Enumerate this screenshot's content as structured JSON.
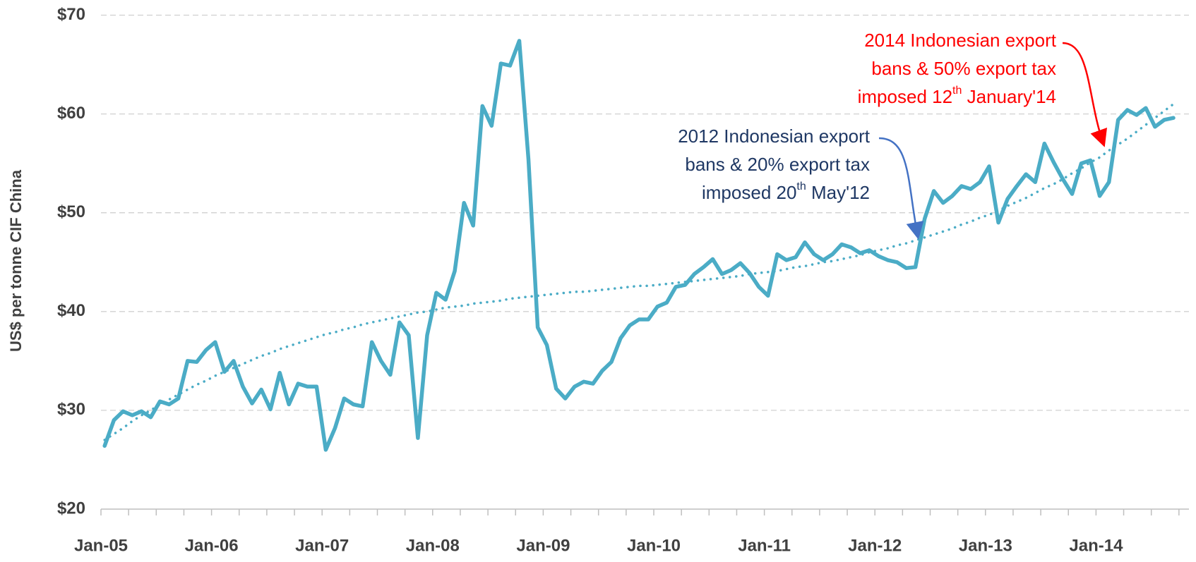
{
  "chart_data": {
    "type": "line",
    "y_label": "US$ per tonne CIF China",
    "categories": [
      "Jan-05",
      null,
      null,
      null,
      null,
      null,
      null,
      null,
      null,
      null,
      null,
      null,
      "Jan-06",
      null,
      null,
      null,
      null,
      null,
      null,
      null,
      null,
      null,
      null,
      null,
      "Jan-07",
      null,
      null,
      null,
      null,
      null,
      null,
      null,
      null,
      null,
      null,
      null,
      "Jan-08",
      null,
      null,
      null,
      null,
      null,
      null,
      null,
      null,
      null,
      null,
      null,
      "Jan-09",
      null,
      null,
      null,
      null,
      null,
      null,
      null,
      null,
      null,
      null,
      null,
      "Jan-10",
      null,
      null,
      null,
      null,
      null,
      null,
      null,
      null,
      null,
      null,
      null,
      "Jan-11",
      null,
      null,
      null,
      null,
      null,
      null,
      null,
      null,
      null,
      null,
      null,
      "Jan-12",
      null,
      null,
      null,
      null,
      null,
      null,
      null,
      null,
      null,
      null,
      null,
      "Jan-13",
      null,
      null,
      null,
      null,
      null,
      null,
      null,
      null,
      null,
      null,
      null,
      "Jan-14",
      null,
      null,
      null,
      null,
      null,
      null,
      null,
      null
    ],
    "series": [
      {
        "color": "#4bacc6",
        "line_style": "solid",
        "values": [
          26.4,
          29.0,
          29.9,
          29.5,
          29.9,
          29.3,
          30.9,
          30.6,
          31.2,
          35.0,
          34.9,
          36.1,
          36.9,
          33.9,
          35.0,
          32.4,
          30.7,
          32.1,
          30.1,
          33.8,
          30.6,
          32.7,
          32.4,
          32.4,
          26.0,
          28.2,
          31.2,
          30.6,
          30.4,
          36.9,
          35.0,
          33.6,
          38.9,
          37.6,
          27.2,
          37.6,
          41.9,
          41.2,
          44.1,
          51.0,
          48.7,
          60.8,
          58.8,
          65.1,
          64.9,
          67.4,
          55.4,
          38.4,
          36.6,
          32.2,
          31.2,
          32.4,
          32.9,
          32.7,
          34.0,
          34.9,
          37.3,
          38.6,
          39.2,
          39.2,
          40.5,
          40.9,
          42.5,
          42.7,
          43.8,
          44.5,
          45.3,
          43.8,
          44.2,
          44.9,
          43.9,
          42.5,
          41.6,
          45.8,
          45.2,
          45.5,
          47.0,
          45.8,
          45.2,
          45.8,
          46.8,
          46.5,
          45.9,
          46.2,
          45.6,
          45.2,
          45.0,
          44.4,
          44.5,
          49.4,
          52.2,
          51.0,
          51.7,
          52.7,
          52.4,
          53.1,
          54.7,
          49.0,
          51.4,
          52.7,
          53.9,
          53.1,
          57.0,
          55.1,
          53.4,
          51.9,
          55.0,
          55.3,
          51.7,
          53.1,
          59.4,
          60.4,
          59.9,
          60.6,
          58.7,
          59.4,
          59.6
        ]
      },
      {
        "color": "#4bacc6",
        "line_style": "dotted",
        "values": [
          27.0,
          27.6,
          28.2,
          28.9,
          29.5,
          30.0,
          30.6,
          31.1,
          31.6,
          32.1,
          32.6,
          33.0,
          33.5,
          33.9,
          34.3,
          34.7,
          35.1,
          35.5,
          35.8,
          36.2,
          36.5,
          36.8,
          37.1,
          37.4,
          37.7,
          37.9,
          38.2,
          38.4,
          38.7,
          38.9,
          39.1,
          39.3,
          39.5,
          39.7,
          39.9,
          40.0,
          40.2,
          40.4,
          40.5,
          40.6,
          40.8,
          40.9,
          41.0,
          41.1,
          41.3,
          41.4,
          41.5,
          41.6,
          41.7,
          41.8,
          41.9,
          42.0,
          42.0,
          42.1,
          42.2,
          42.3,
          42.4,
          42.5,
          42.6,
          42.6,
          42.7,
          42.8,
          42.9,
          43.0,
          43.1,
          43.2,
          43.3,
          43.4,
          43.5,
          43.6,
          43.8,
          43.9,
          44.0,
          44.1,
          44.3,
          44.5,
          44.6,
          44.8,
          45.0,
          45.1,
          45.3,
          45.5,
          45.7,
          46.0,
          46.2,
          46.4,
          46.7,
          46.9,
          47.2,
          47.5,
          47.8,
          48.1,
          48.4,
          48.8,
          49.1,
          49.5,
          49.8,
          50.2,
          50.7,
          51.1,
          51.5,
          52.0,
          52.5,
          52.9,
          53.4,
          54.0,
          54.5,
          55.1,
          55.6,
          56.3,
          56.9,
          57.5,
          58.2,
          58.9,
          59.6,
          60.3,
          61.0
        ]
      }
    ],
    "ylim": [
      20,
      70
    ],
    "yticks": [
      {
        "value": 20,
        "label": "$20"
      },
      {
        "value": 30,
        "label": "$30"
      },
      {
        "value": 40,
        "label": "$40"
      },
      {
        "value": 50,
        "label": "$50"
      },
      {
        "value": 60,
        "label": "$60"
      },
      {
        "value": 70,
        "label": "$70"
      }
    ],
    "grid": true,
    "annotations": [
      {
        "color": "#1f3864",
        "arrow_color": "#4472c4",
        "lines": [
          "2012 Indonesian export",
          "bans & 20% export tax"
        ],
        "last_line": {
          "before": "imposed 20",
          "sup": "th",
          "after": " May'12"
        }
      },
      {
        "color": "#ff0000",
        "arrow_color": "#ff0000",
        "lines": [
          "2014 Indonesian export",
          "bans & 50% export tax"
        ],
        "last_line": {
          "before": "imposed 12",
          "sup": "th",
          "after": " January'14"
        }
      }
    ]
  }
}
